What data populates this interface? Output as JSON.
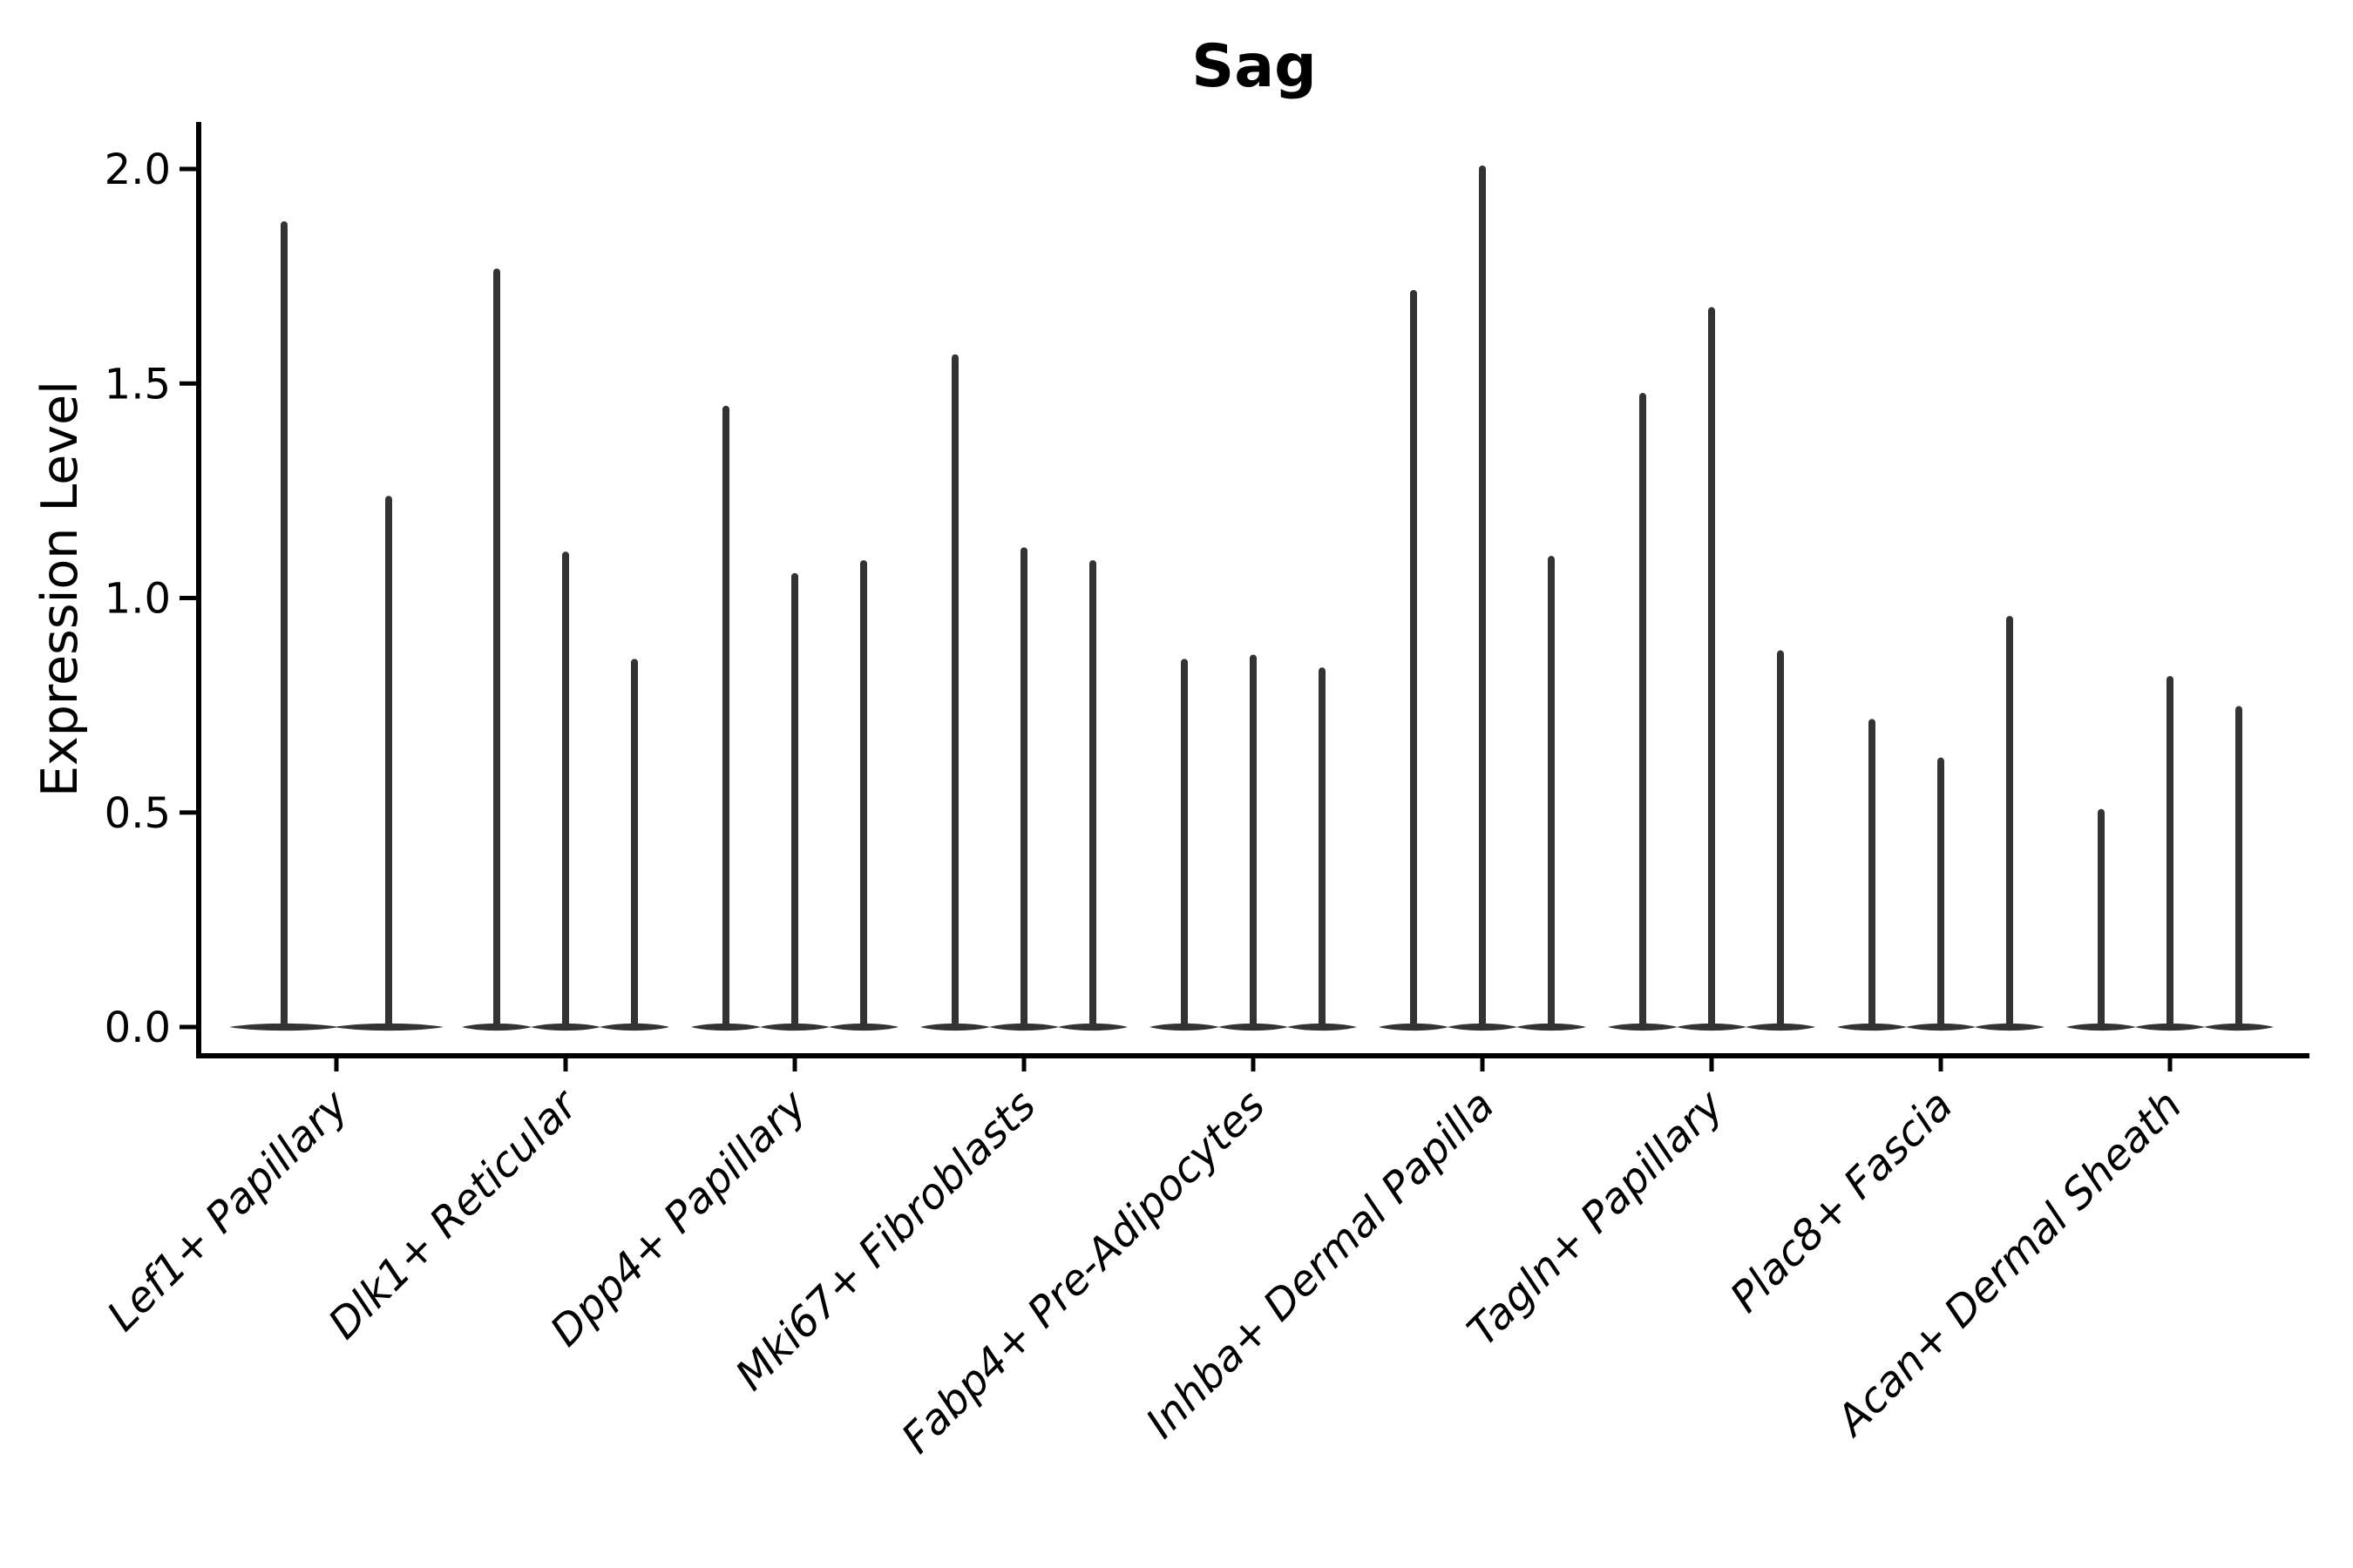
{
  "figure": {
    "background_color": "#ffffff",
    "text_color": "#000000",
    "axis_color": "#000000",
    "violin_color": "#333333"
  },
  "chart_data": {
    "type": "violin",
    "title": "Sag",
    "xlabel": "",
    "ylabel": "Expression Level",
    "ylim": [
      -0.07,
      2.1
    ],
    "yticks": [
      0.0,
      0.5,
      1.0,
      1.5,
      2.0
    ],
    "ytick_labels": [
      "0.0",
      "0.5",
      "1.0",
      "1.5",
      "2.0"
    ],
    "grid": false,
    "legend": "none",
    "xtick_label_rotation_deg": 45,
    "categories": [
      "Lef1+ Papillary",
      "Dlk1+ Reticular",
      "Dpp4+ Papillary",
      "Mki67+ Fibroblasts",
      "Fabp4+ Pre-Adipocytes",
      "Inhba+ Dermal Papilla",
      "Tagln+ Papillary",
      "Plac8+ Fascia",
      "Acan+ Dermal Sheath"
    ],
    "groups": [
      {
        "category": "Lef1+ Papillary",
        "violin_maxima": [
          1.87,
          1.23
        ]
      },
      {
        "category": "Dlk1+ Reticular",
        "violin_maxima": [
          1.76,
          1.1,
          0.85
        ]
      },
      {
        "category": "Dpp4+ Papillary",
        "violin_maxima": [
          1.44,
          1.05,
          1.08
        ]
      },
      {
        "category": "Mki67+ Fibroblasts",
        "violin_maxima": [
          1.56,
          1.11,
          1.08
        ]
      },
      {
        "category": "Fabp4+ Pre-Adipocytes",
        "violin_maxima": [
          0.85,
          0.86,
          0.83
        ]
      },
      {
        "category": "Inhba+ Dermal Papilla",
        "violin_maxima": [
          1.71,
          2.0,
          1.09
        ]
      },
      {
        "category": "Tagln+ Papillary",
        "violin_maxima": [
          1.47,
          1.67,
          0.87
        ]
      },
      {
        "category": "Plac8+ Fascia",
        "violin_maxima": [
          0.71,
          0.62,
          0.95
        ]
      },
      {
        "category": "Acan+ Dermal Sheath",
        "violin_maxima": [
          0.5,
          0.81,
          0.74
        ]
      }
    ],
    "violin_shape_note": "Each violin is a sparse-expression violin: a wide flat base at expression 0 with a single thin spike rising to the listed maximum."
  }
}
